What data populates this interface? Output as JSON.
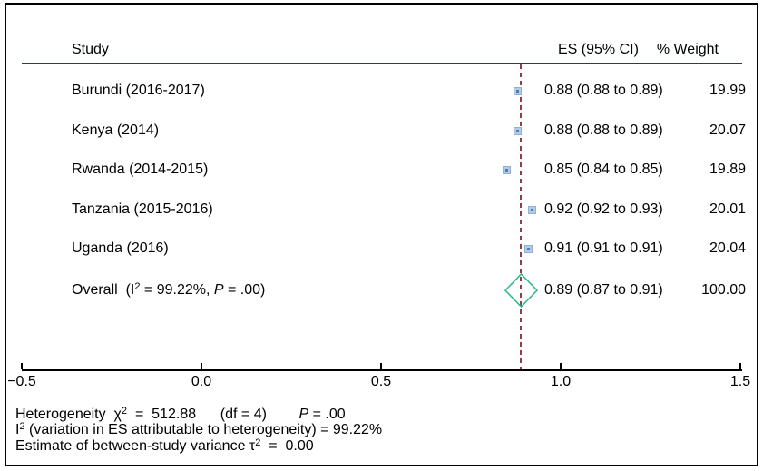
{
  "header": {
    "study": "Study",
    "es_ci": "ES (95% CI)",
    "weight": "% Weight"
  },
  "chart_data": {
    "type": "forest",
    "effect_measure": "ES",
    "studies": [
      {
        "label": "Burundi (2016-2017)",
        "es": 0.88,
        "ci_lo": 0.88,
        "ci_hi": 0.89,
        "ci_text": "0.88 (0.88 to 0.89)",
        "weight": "19.99"
      },
      {
        "label": "Kenya (2014)",
        "es": 0.88,
        "ci_lo": 0.88,
        "ci_hi": 0.89,
        "ci_text": "0.88 (0.88 to 0.89)",
        "weight": "20.07"
      },
      {
        "label": "Rwanda (2014-2015)",
        "es": 0.85,
        "ci_lo": 0.84,
        "ci_hi": 0.85,
        "ci_text": "0.85 (0.84 to 0.85)",
        "weight": "19.89"
      },
      {
        "label": "Tanzania (2015-2016)",
        "es": 0.92,
        "ci_lo": 0.92,
        "ci_hi": 0.93,
        "ci_text": "0.92 (0.92 to 0.93)",
        "weight": "20.01"
      },
      {
        "label": "Uganda (2016)",
        "es": 0.91,
        "ci_lo": 0.91,
        "ci_hi": 0.91,
        "ci_text": "0.91 (0.91 to 0.91)",
        "weight": "20.04"
      }
    ],
    "overall": {
      "es": 0.89,
      "ci_lo": 0.87,
      "ci_hi": 0.91,
      "ci_text": "0.89 (0.87 to 0.91)",
      "weight": "100.00"
    },
    "reference_line_value": 0.89,
    "x_axis": {
      "range": [
        -0.5,
        1.5
      ],
      "ticks": [
        -0.5,
        0.0,
        0.5,
        1.0,
        1.5
      ],
      "tick_labels": [
        "−0.5",
        "0.0",
        "0.5",
        "1.0",
        "1.5"
      ],
      "grid": false
    },
    "heterogeneity": {
      "chi_squared": "512.88",
      "df": "4",
      "p": ".00",
      "i_squared": "99.22%",
      "tau_squared": "0.00"
    }
  },
  "overall_label": {
    "prefix": "Overall  (I",
    "sup": "2",
    "mid": " = 99.22%, ",
    "p": "P",
    "suffix": " = .00)"
  },
  "footer": {
    "line1": {
      "a": "Heterogeneity  ",
      "chi": "χ",
      "sup": "2",
      "b": "  =  512.88      (df = 4)        ",
      "p": "P",
      "c": " = .00"
    },
    "line2": {
      "a": "I",
      "sup": "2",
      "b": " (variation in ES attributable to heterogeneity) = 99.22%"
    },
    "line3": {
      "a": "Estimate of between-study variance ",
      "tau": "τ",
      "sup": "2",
      "b": "  =  0.00"
    }
  },
  "colors": {
    "reference_line": "#8d4048",
    "marker_fill": "#b3cbe4",
    "marker_border": "#8fb2d4",
    "marker_dot": "#4d7eb3",
    "diamond_stroke": "#2db98c",
    "header_rule": "#2e3b48",
    "axis": "#000000",
    "frame": "#000000"
  }
}
